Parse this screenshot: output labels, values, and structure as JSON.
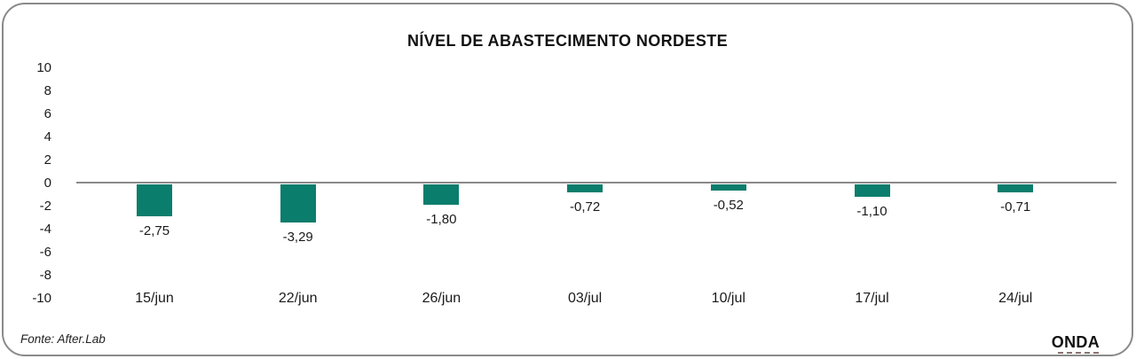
{
  "chart_data": {
    "type": "bar",
    "title": "NÍVEL DE ABASTECIMENTO NORDESTE",
    "categories": [
      "15/jun",
      "22/jun",
      "26/jun",
      "03/jul",
      "10/jul",
      "17/jul",
      "24/jul"
    ],
    "values": [
      -2.75,
      -3.29,
      -1.8,
      -0.72,
      -0.52,
      -1.1,
      -0.71
    ],
    "value_labels": [
      "-2,75",
      "-3,29",
      "-1,80",
      "-0,72",
      "-0,52",
      "-1,10",
      "-0,71"
    ],
    "ylim": [
      -10,
      10
    ],
    "yticks": [
      10,
      8,
      6,
      4,
      2,
      0,
      -2,
      -4,
      -6,
      -8,
      -10
    ],
    "bar_color": "#0A7D6C",
    "zero_line_color": "#8A8A8A",
    "xlabel": "",
    "ylabel": "",
    "grid": false,
    "legend": "none"
  },
  "footer": {
    "source": "Fonte: After.Lab",
    "brand": "ONDA"
  }
}
